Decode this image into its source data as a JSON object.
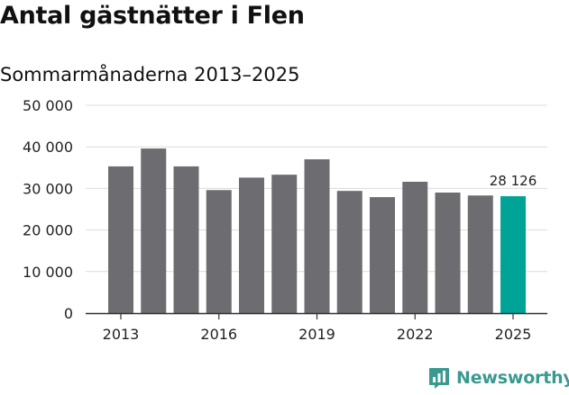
{
  "chart_data": {
    "type": "bar",
    "title": "Antal gästnätter i Flen",
    "subtitle": "Sommarmånaderna 2013–2025",
    "categories": [
      "2013",
      "2014",
      "2015",
      "2016",
      "2017",
      "2018",
      "2019",
      "2020",
      "2021",
      "2022",
      "2023",
      "2024",
      "2025"
    ],
    "values": [
      35300,
      39600,
      35300,
      29600,
      32600,
      33300,
      37000,
      29400,
      27900,
      31600,
      29000,
      28300,
      28126
    ],
    "x_tick_labels": [
      "2013",
      "2016",
      "2019",
      "2022",
      "2025"
    ],
    "y_ticks": [
      0,
      10000,
      20000,
      30000,
      40000,
      50000
    ],
    "y_tick_labels": [
      "0",
      "10 000",
      "20 000",
      "30 000",
      "40 000",
      "50 000"
    ],
    "ylim": [
      0,
      50000
    ],
    "xlabel": "",
    "ylabel": "",
    "grid": true,
    "highlight_index": 12,
    "highlight_label": "28 126",
    "colors": {
      "bar": "#6d6c70",
      "highlight": "#00a497",
      "grid": "#dcdcdc",
      "axis": "#333333"
    }
  },
  "brand": {
    "name": "Newsworthy",
    "color": "#3a9a8f",
    "icon": "chart-bubble-icon"
  }
}
